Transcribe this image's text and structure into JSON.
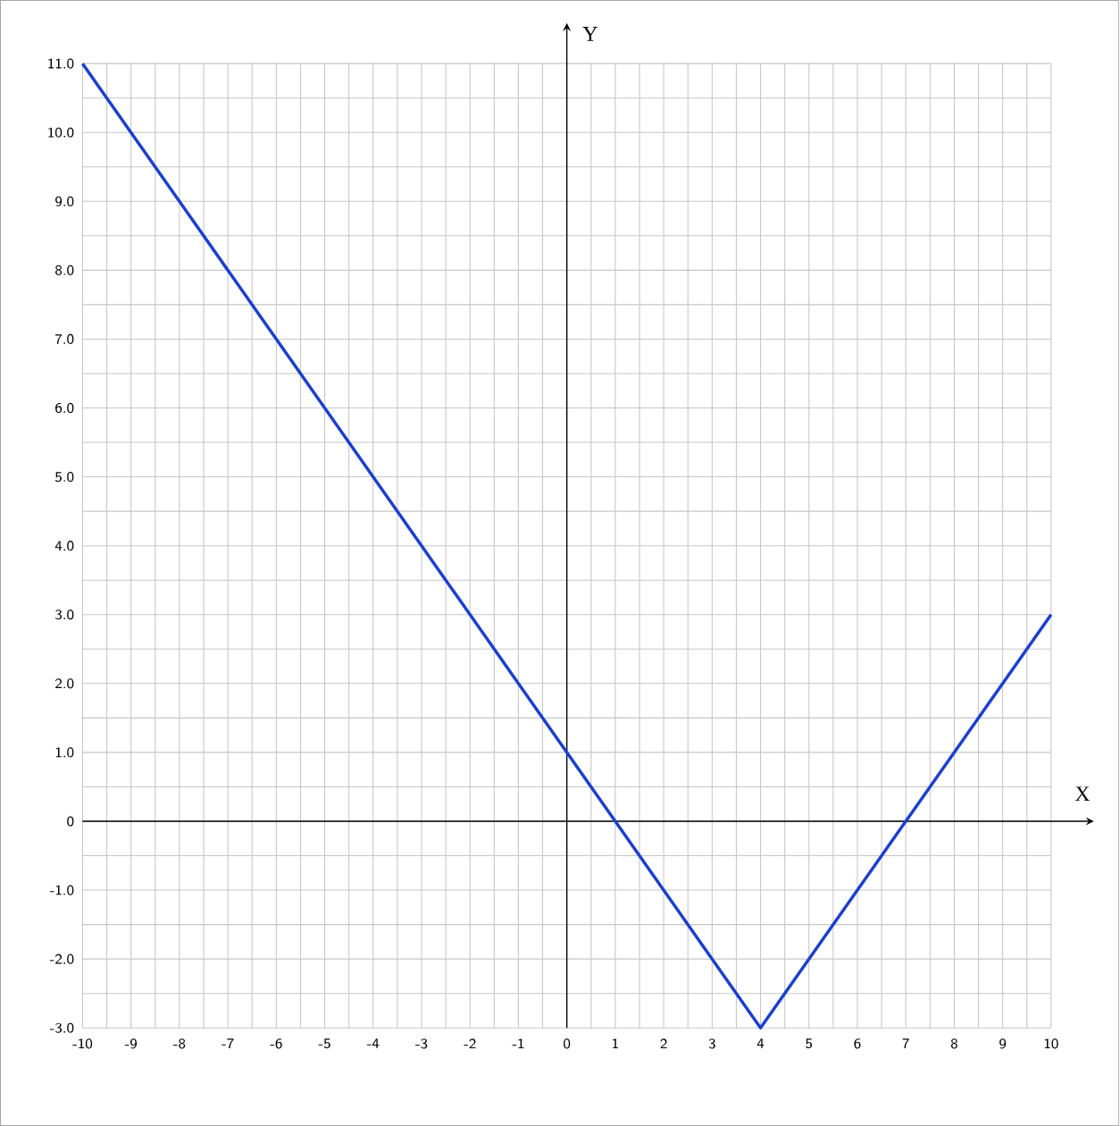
{
  "chart_data": {
    "type": "line",
    "xlabel": "X",
    "ylabel": "Y",
    "x": [
      -10,
      4,
      10
    ],
    "series": [
      {
        "color": "#1a3fd1",
        "values": [
          11,
          -3,
          3
        ]
      }
    ],
    "xlim": [
      -10,
      10
    ],
    "ylim": [
      -3,
      11
    ],
    "xticks": [
      -10,
      -9,
      -8,
      -7,
      -6,
      -5,
      -4,
      -3,
      -2,
      -1,
      0,
      1,
      2,
      3,
      4,
      5,
      6,
      7,
      8,
      9,
      10
    ],
    "yticks": [
      {
        "value": -3,
        "label": "-3.0"
      },
      {
        "value": -2,
        "label": "-2.0"
      },
      {
        "value": -1,
        "label": "-1.0"
      },
      {
        "value": 0,
        "label": "0"
      },
      {
        "value": 1,
        "label": "1.0"
      },
      {
        "value": 2,
        "label": "2.0"
      },
      {
        "value": 3,
        "label": "3.0"
      },
      {
        "value": 4,
        "label": "4.0"
      },
      {
        "value": 5,
        "label": "5.0"
      },
      {
        "value": 6,
        "label": "6.0"
      },
      {
        "value": 7,
        "label": "7.0"
      },
      {
        "value": 8,
        "label": "8.0"
      },
      {
        "value": 9,
        "label": "9.0"
      },
      {
        "value": 10,
        "label": "10.0"
      },
      {
        "value": 11,
        "label": "11.0"
      }
    ],
    "grid": true
  }
}
